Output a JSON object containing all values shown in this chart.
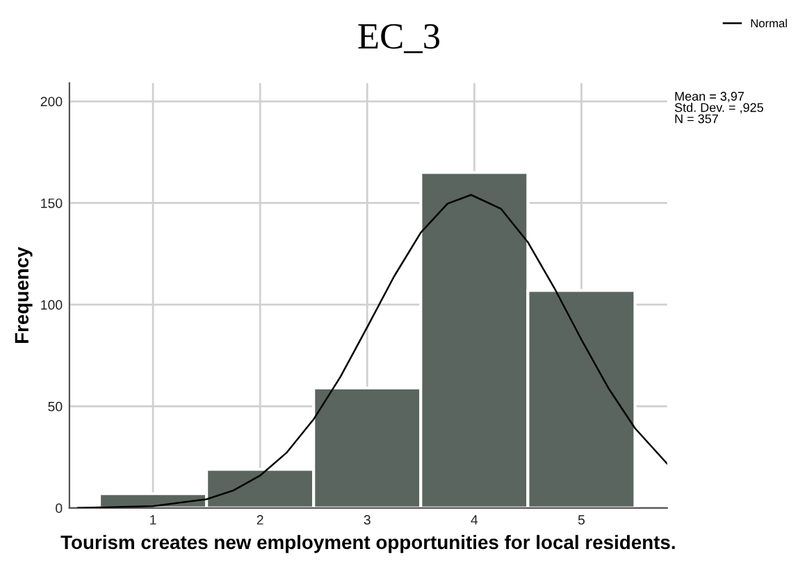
{
  "chart_data": {
    "type": "histogram",
    "title": "EC_3",
    "xlabel": "Tourism creates new employment opportunities for local residents.",
    "ylabel": "Frequency",
    "bins": [
      0.5,
      1.5,
      2.5,
      3.5,
      4.5,
      5.5
    ],
    "values": [
      7,
      19,
      59,
      165,
      107
    ],
    "color": "#5b6560",
    "series": [
      {
        "name": "Normal",
        "type": "line",
        "color": "#000000",
        "x": [
          0.3,
          1,
          1.5,
          1.75,
          2,
          2.25,
          2.5,
          2.75,
          3,
          3.25,
          3.5,
          3.75,
          3.97,
          4.25,
          4.5,
          4.75,
          5,
          5.25,
          5.5,
          5.8
        ],
        "values": [
          0,
          0.9,
          4.3,
          8.6,
          15.9,
          27.3,
          43.6,
          64.5,
          88.9,
          113.8,
          135.4,
          149.7,
          154,
          147.1,
          130.7,
          107.9,
          82.8,
          59.1,
          39.2,
          21.8
        ]
      }
    ],
    "annotations": [
      "Mean = 3,97\nStd. Dev. = ,925\nN = 357"
    ],
    "xlim": [
      0.22,
      5.8
    ],
    "ylim": [
      0,
      209
    ],
    "xticks": [
      1,
      2,
      3,
      4,
      5
    ],
    "yticks": [
      0,
      50,
      100,
      150,
      200
    ],
    "grid": true,
    "legend": "top right"
  }
}
